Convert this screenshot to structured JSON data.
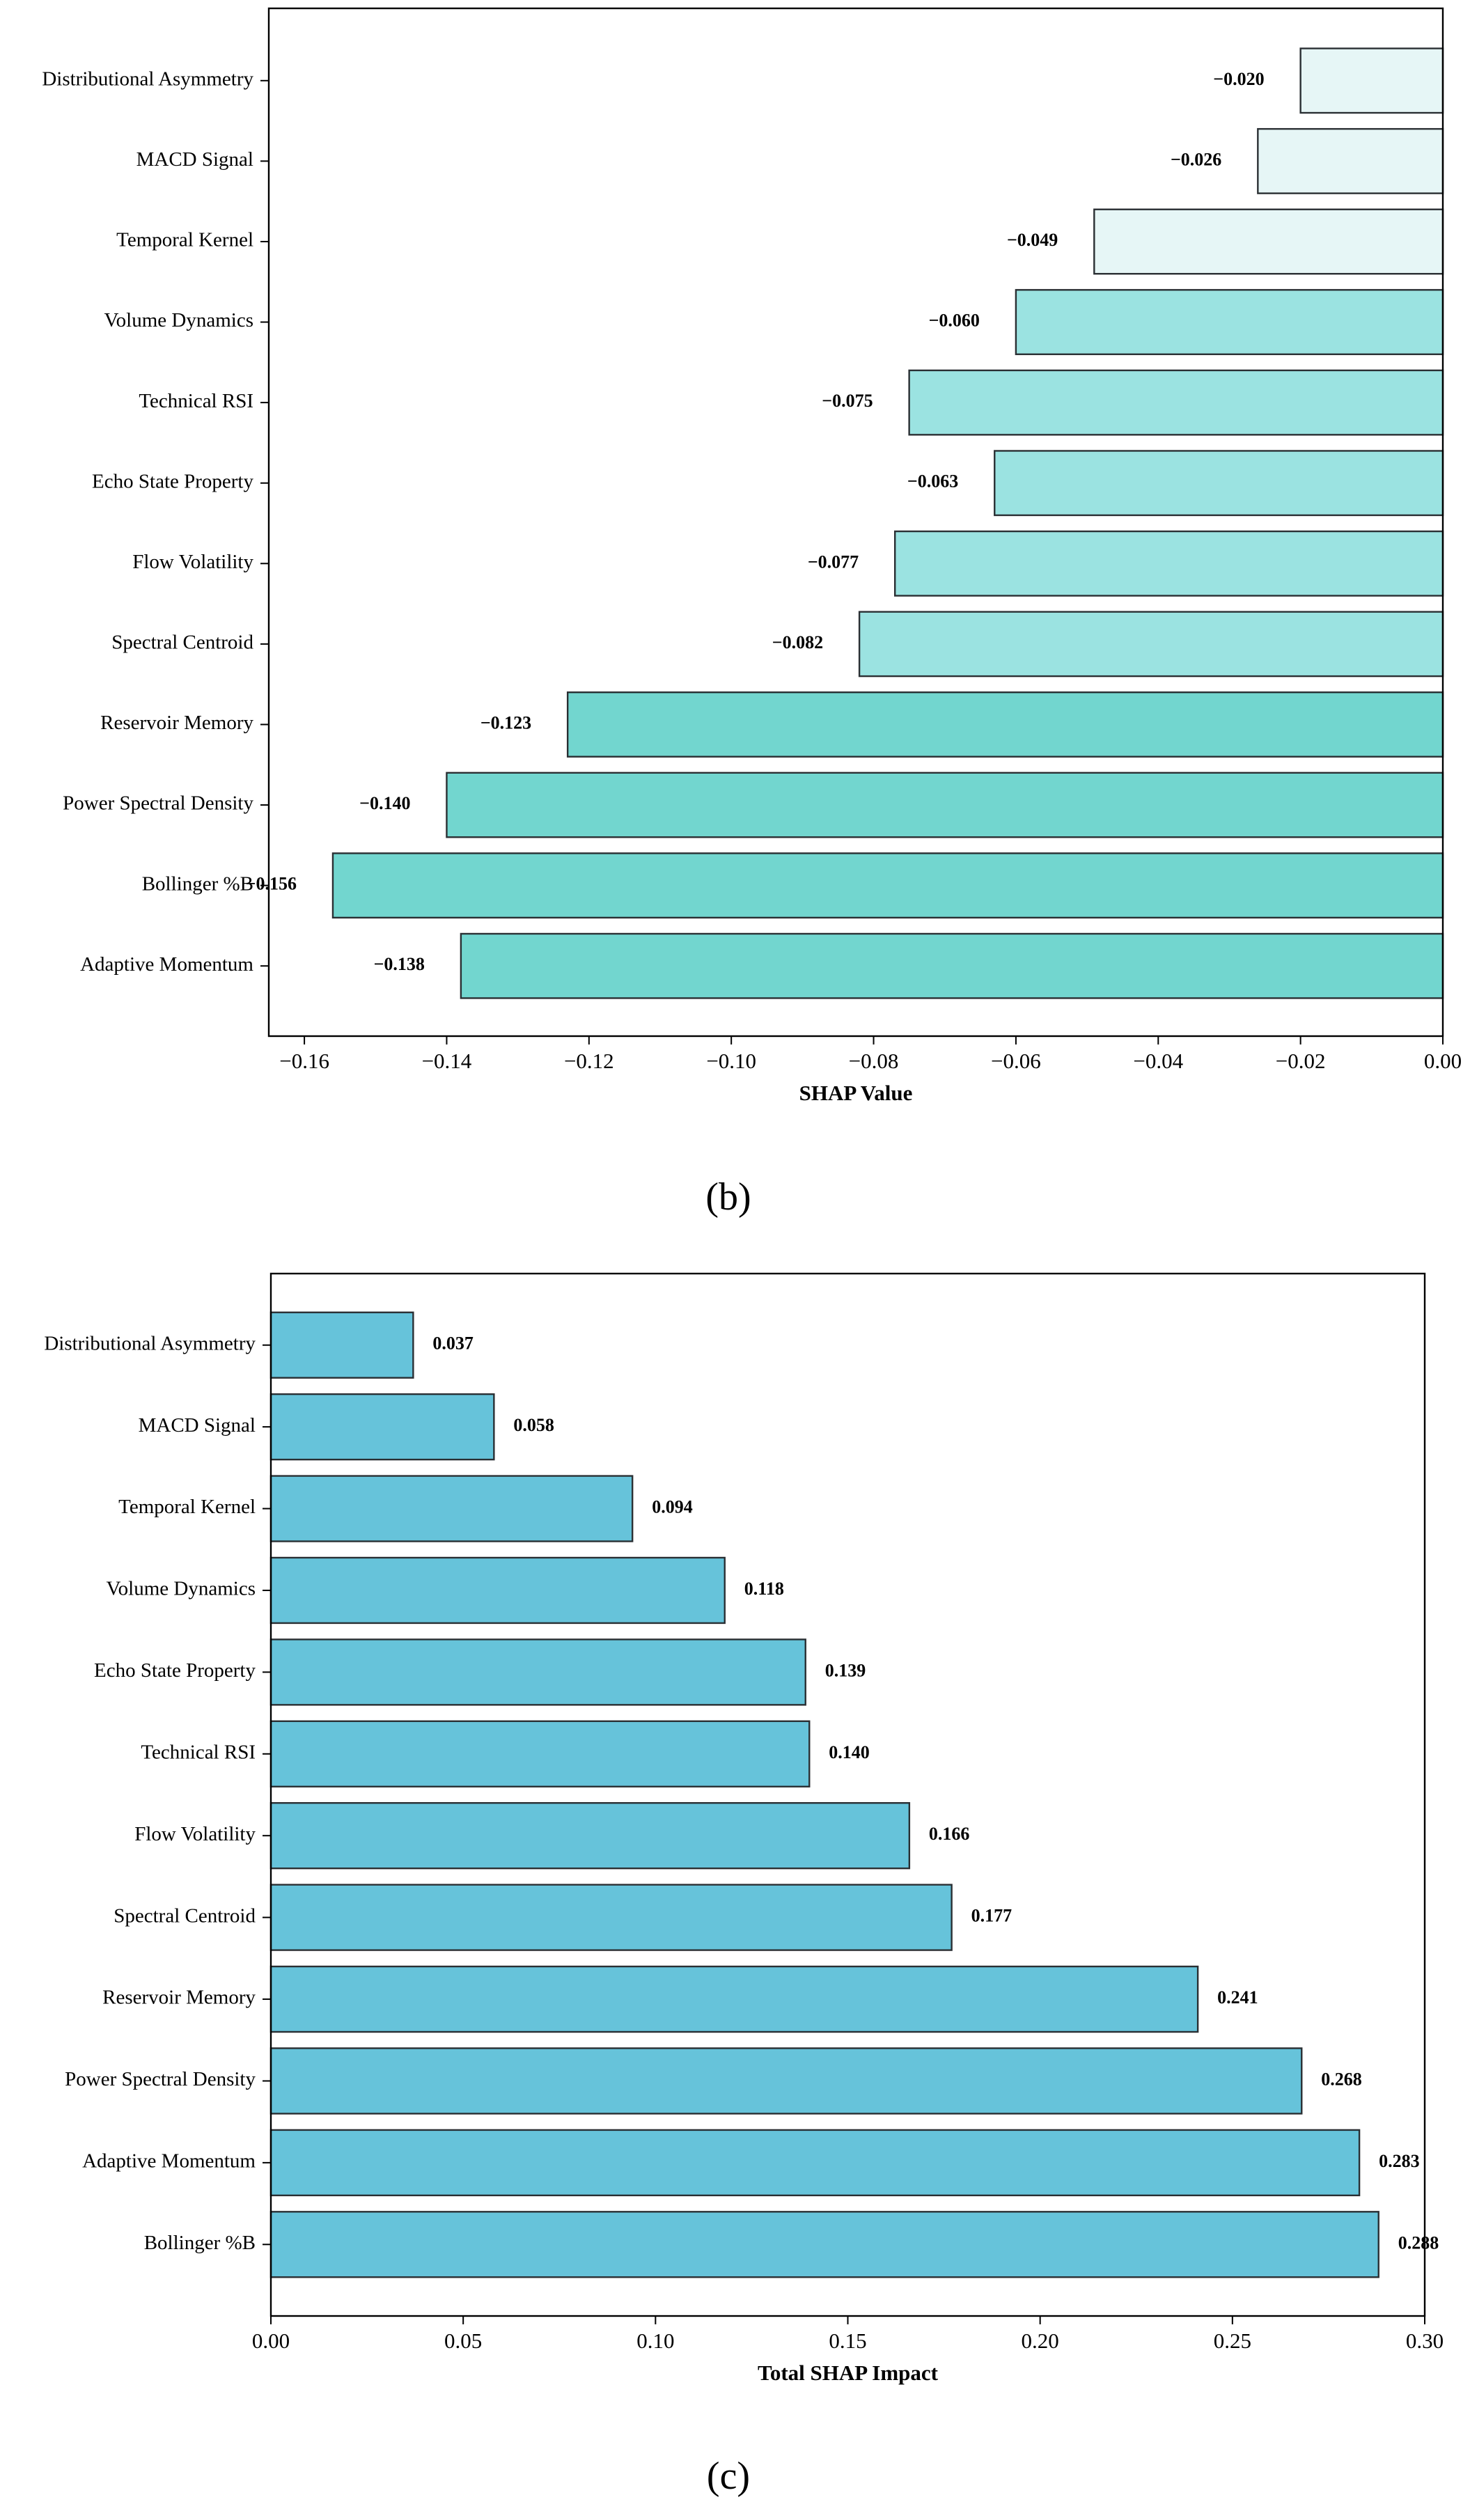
{
  "chart_data": [
    {
      "type": "bar",
      "orientation": "horizontal",
      "panel_label": "b",
      "xlabel": "SHAP Value",
      "ylabel": "",
      "xlim": [
        -0.165,
        0.0
      ],
      "xticks": [
        -0.16,
        -0.14,
        -0.12,
        -0.1,
        -0.08,
        -0.06,
        -0.04,
        -0.02,
        0.0
      ],
      "xtick_labels": [
        "−0.16",
        "−0.14",
        "−0.12",
        "−0.10",
        "−0.08",
        "−0.06",
        "−0.04",
        "−0.02",
        "0.00"
      ],
      "grid": false,
      "categories": [
        "Distributional Asymmetry",
        "MACD Signal",
        "Temporal Kernel",
        "Volume Dynamics",
        "Technical RSI",
        "Echo State Property",
        "Flow Volatility",
        "Spectral Centroid",
        "Reservoir Memory",
        "Power Spectral Density",
        "Bollinger %B",
        "Adaptive Momentum"
      ],
      "values": [
        -0.02,
        -0.026,
        -0.049,
        -0.06,
        -0.075,
        -0.063,
        -0.077,
        -0.082,
        -0.123,
        -0.14,
        -0.156,
        -0.138
      ],
      "value_labels": [
        "−0.020",
        "−0.026",
        "−0.049",
        "−0.060",
        "−0.075",
        "−0.063",
        "−0.077",
        "−0.082",
        "−0.123",
        "−0.140",
        "−0.156",
        "−0.138"
      ],
      "bar_colors": [
        "#e6f6f6",
        "#e6f6f6",
        "#e6f6f6",
        "#9be3e1",
        "#9be3e1",
        "#9be3e1",
        "#9be3e1",
        "#9be3e1",
        "#72d6cf",
        "#72d6cf",
        "#72d6cf",
        "#72d6cf"
      ]
    },
    {
      "type": "bar",
      "orientation": "horizontal",
      "panel_label": "c",
      "xlabel": "Total SHAP Impact",
      "ylabel": "",
      "xlim": [
        0.0,
        0.3
      ],
      "xticks": [
        0.0,
        0.05,
        0.1,
        0.15,
        0.2,
        0.25,
        0.3
      ],
      "xtick_labels": [
        "0.00",
        "0.05",
        "0.10",
        "0.15",
        "0.20",
        "0.25",
        "0.30"
      ],
      "grid": false,
      "categories": [
        "Distributional Asymmetry",
        "MACD Signal",
        "Temporal Kernel",
        "Volume Dynamics",
        "Echo State Property",
        "Technical RSI",
        "Flow Volatility",
        "Spectral Centroid",
        "Reservoir Memory",
        "Power Spectral Density",
        "Adaptive Momentum",
        "Bollinger %B"
      ],
      "values": [
        0.037,
        0.058,
        0.094,
        0.118,
        0.139,
        0.14,
        0.166,
        0.177,
        0.241,
        0.268,
        0.283,
        0.288
      ],
      "value_labels": [
        "0.037",
        "0.058",
        "0.094",
        "0.118",
        "0.139",
        "0.140",
        "0.166",
        "0.177",
        "0.241",
        "0.268",
        "0.283",
        "0.288"
      ],
      "bar_color": "#66c3da"
    }
  ],
  "captions": {
    "b": "(b)",
    "c": "(c)"
  }
}
